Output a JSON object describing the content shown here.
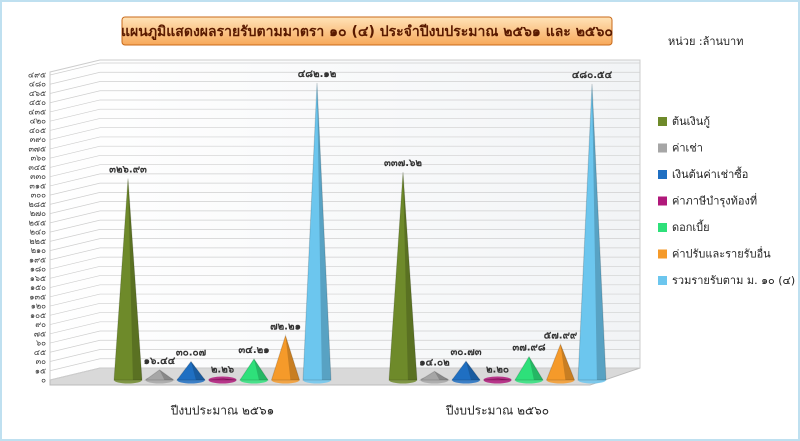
{
  "chart_data": {
    "type": "cone",
    "title": "แผนภูมิแสดงผลรายรับตามมาตรา ๑๐ (๔) ประจำปีงบประมาณ ๒๕๖๑ และ ๒๕๖๐",
    "unit_label": "หน่วย :ล้านบาท",
    "categories": [
      "ปีงบประมาณ ๒๕๖๑",
      "ปีงบประมาณ ๒๕๖๐"
    ],
    "series": [
      {
        "name": "ต้นเงินกู้",
        "color": "#6e8a2a",
        "values": [
          326.93,
          337.62
        ],
        "value_labels": [
          "๓๒๖.๙๓",
          "๓๓๗.๖๒"
        ]
      },
      {
        "name": "ค่าเช่า",
        "color": "#a6a6a6",
        "values": [
          16.44,
          14.02
        ],
        "value_labels": [
          "๑๖.๔๔",
          "๑๔.๐๒"
        ]
      },
      {
        "name": "เงินต้นค่าเช่าซื้อ",
        "color": "#1f6fc2",
        "values": [
          30.07,
          30.73
        ],
        "value_labels": [
          "๓๐.๐๗",
          "๓๐.๗๓"
        ]
      },
      {
        "name": "ค่าภาษีบำรุงท้องที่",
        "color": "#b0187a",
        "values": [
          2.26,
          2.2
        ],
        "value_labels": [
          "๒.๒๖",
          "๒.๒๐"
        ]
      },
      {
        "name": "ดอกเบี้ย",
        "color": "#2ee07a",
        "values": [
          34.21,
          37.98
        ],
        "value_labels": [
          "๓๔.๒๑",
          "๓๗.๙๘"
        ]
      },
      {
        "name": "ค่าปรับและรายรับอื่น",
        "color": "#f59a2a",
        "values": [
          72.21,
          57.99
        ],
        "value_labels": [
          "๗๒.๒๑",
          "๕๗.๙๙"
        ]
      },
      {
        "name": "รวมรายรับตาม ม. ๑๐ (๔)",
        "color": "#6cc6ee",
        "values": [
          482.12,
          480.54
        ],
        "value_labels": [
          "๔๘๒.๑๒",
          "๔๘๐.๕๔"
        ]
      }
    ],
    "ylim": [
      0,
      495
    ],
    "yticks": [
      {
        "value": 0,
        "label": "๐"
      },
      {
        "value": 15,
        "label": "๑๕"
      },
      {
        "value": 30,
        "label": "๓๐"
      },
      {
        "value": 45,
        "label": "๔๕"
      },
      {
        "value": 60,
        "label": "๖๐"
      },
      {
        "value": 75,
        "label": "๗๕"
      },
      {
        "value": 90,
        "label": "๙๐"
      },
      {
        "value": 105,
        "label": "๑๐๕"
      },
      {
        "value": 120,
        "label": "๑๒๐"
      },
      {
        "value": 135,
        "label": "๑๓๕"
      },
      {
        "value": 150,
        "label": "๑๕๐"
      },
      {
        "value": 165,
        "label": "๑๖๕"
      },
      {
        "value": 180,
        "label": "๑๘๐"
      },
      {
        "value": 195,
        "label": "๑๙๕"
      },
      {
        "value": 210,
        "label": "๒๑๐"
      },
      {
        "value": 225,
        "label": "๒๒๕"
      },
      {
        "value": 240,
        "label": "๒๔๐"
      },
      {
        "value": 255,
        "label": "๒๕๕"
      },
      {
        "value": 270,
        "label": "๒๗๐"
      },
      {
        "value": 285,
        "label": "๒๘๕"
      },
      {
        "value": 300,
        "label": "๓๐๐"
      },
      {
        "value": 315,
        "label": "๓๑๕"
      },
      {
        "value": 330,
        "label": "๓๓๐"
      },
      {
        "value": 345,
        "label": "๓๔๕"
      },
      {
        "value": 360,
        "label": "๓๖๐"
      },
      {
        "value": 375,
        "label": "๓๗๕"
      },
      {
        "value": 390,
        "label": "๓๙๐"
      },
      {
        "value": 405,
        "label": "๔๐๕"
      },
      {
        "value": 420,
        "label": "๔๒๐"
      },
      {
        "value": 435,
        "label": "๔๓๕"
      },
      {
        "value": 450,
        "label": "๔๕๐"
      },
      {
        "value": 465,
        "label": "๔๖๕"
      },
      {
        "value": 480,
        "label": "๔๘๐"
      },
      {
        "value": 495,
        "label": "๔๙๕"
      }
    ],
    "grid": true,
    "legend": "right"
  }
}
